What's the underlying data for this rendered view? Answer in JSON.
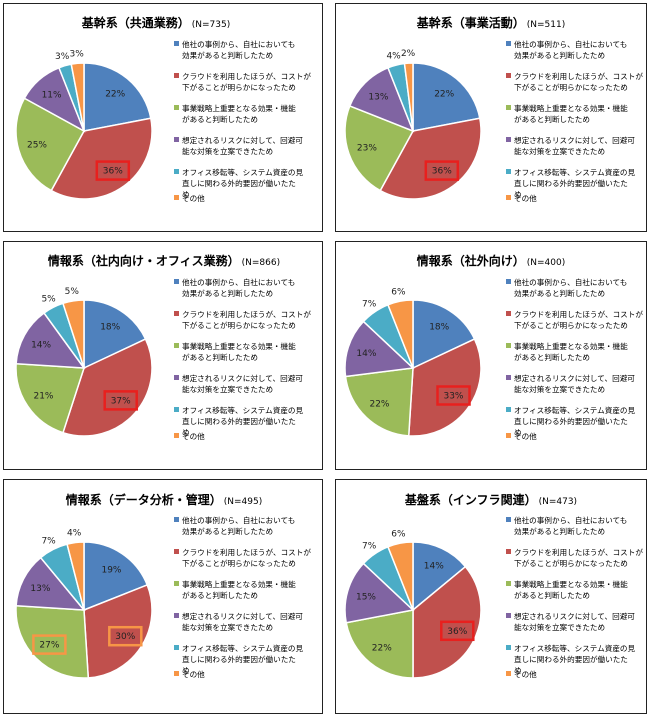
{
  "legend": [
    [
      "他社の事例から、自社においても",
      "効果があると判断したため"
    ],
    [
      "クラウドを利用したほうが、コストが",
      "下がることが明らかになったため"
    ],
    [
      "事業戦略上重要となる効果・機能",
      "があると判断したため"
    ],
    [
      "想定されるリスクに対して、回避可",
      "能な対策を立案できたため"
    ],
    [
      "オフィス移転等、システム資産の見",
      "直しに関わる外的要因が働いたた",
      "め"
    ],
    [
      "その他"
    ]
  ],
  "colors": [
    "#4F81BD",
    "#C0504D",
    "#9BBB59",
    "#8064A2",
    "#4BACC6",
    "#F79646"
  ],
  "highlight_colors": {
    "red": "#E8201E",
    "orange": "#F79646"
  },
  "chart_data": [
    {
      "type": "pie",
      "title": "基幹系（共通業務）",
      "n_label": "(N=735)",
      "values": [
        22,
        36,
        25,
        11,
        3,
        3
      ],
      "labels": [
        "22%",
        "36%",
        "25%",
        "11%",
        "3%",
        "3%"
      ],
      "highlights": [
        {
          "slice": 1,
          "color": "red"
        }
      ]
    },
    {
      "type": "pie",
      "title": "基幹系（事業活動）",
      "n_label": "(N=511)",
      "values": [
        22,
        36,
        23,
        13,
        4,
        2
      ],
      "labels": [
        "22%",
        "36%",
        "23%",
        "13%",
        "4%",
        "2%"
      ],
      "highlights": [
        {
          "slice": 1,
          "color": "red"
        }
      ]
    },
    {
      "type": "pie",
      "title": "情報系（社内向け・オフィス業務）",
      "n_label": "(N=866)",
      "values": [
        18,
        37,
        21,
        14,
        5,
        5
      ],
      "labels": [
        "18%",
        "37%",
        "21%",
        "14%",
        "5%",
        "5%"
      ],
      "highlights": [
        {
          "slice": 1,
          "color": "red"
        }
      ]
    },
    {
      "type": "pie",
      "title": "情報系（社外向け）",
      "n_label": "(N=400)",
      "values": [
        18,
        33,
        22,
        14,
        7,
        6
      ],
      "labels": [
        "18%",
        "33%",
        "22%",
        "14%",
        "7%",
        "6%"
      ],
      "highlights": [
        {
          "slice": 1,
          "color": "red"
        }
      ]
    },
    {
      "type": "pie",
      "title": "情報系（データ分析・管理）",
      "n_label": "(N=495)",
      "values": [
        19,
        30,
        27,
        13,
        7,
        4
      ],
      "labels": [
        "19%",
        "30%",
        "27%",
        "13%",
        "7%",
        "4%"
      ],
      "highlights": [
        {
          "slice": 1,
          "color": "orange"
        },
        {
          "slice": 2,
          "color": "orange"
        }
      ]
    },
    {
      "type": "pie",
      "title": "基盤系（インフラ関連）",
      "n_label": "(N=473)",
      "values": [
        14,
        36,
        22,
        15,
        7,
        6
      ],
      "labels": [
        "14%",
        "36%",
        "22%",
        "15%",
        "7%",
        "6%"
      ],
      "highlights": [
        {
          "slice": 1,
          "color": "red"
        }
      ]
    }
  ]
}
